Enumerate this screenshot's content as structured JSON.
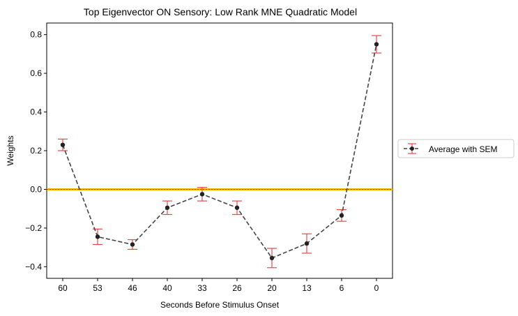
{
  "chart_data": {
    "type": "line",
    "title": "Top Eigenvector ON Sensory: Low Rank MNE Quadratic Model",
    "xlabel": "Seconds Before Stimulus Onset",
    "ylabel": "Weights",
    "categories": [
      "60",
      "53",
      "46",
      "40",
      "33",
      "26",
      "20",
      "13",
      "6",
      "0"
    ],
    "series": [
      {
        "name": "Average with SEM",
        "values": [
          0.23,
          -0.245,
          -0.285,
          -0.095,
          -0.025,
          -0.095,
          -0.355,
          -0.28,
          -0.135,
          0.75
        ],
        "errors": [
          0.03,
          0.04,
          0.025,
          0.035,
          0.035,
          0.035,
          0.05,
          0.05,
          0.03,
          0.045
        ],
        "line_color": "#444444",
        "marker_color": "#222222",
        "error_color": "#e8474a"
      }
    ],
    "reference_line": {
      "y": 0.0,
      "color": "#f5b400",
      "center_color": "#e0302a"
    },
    "ylim": [
      -0.46,
      0.86
    ],
    "yticks": [
      -0.4,
      -0.2,
      0.0,
      0.2,
      0.4,
      0.6,
      0.8
    ],
    "ytick_labels": [
      "−0.4",
      "−0.2",
      "0.0",
      "0.2",
      "0.4",
      "0.6",
      "0.8"
    ],
    "grid": false,
    "legend_placement": "outside-right"
  }
}
